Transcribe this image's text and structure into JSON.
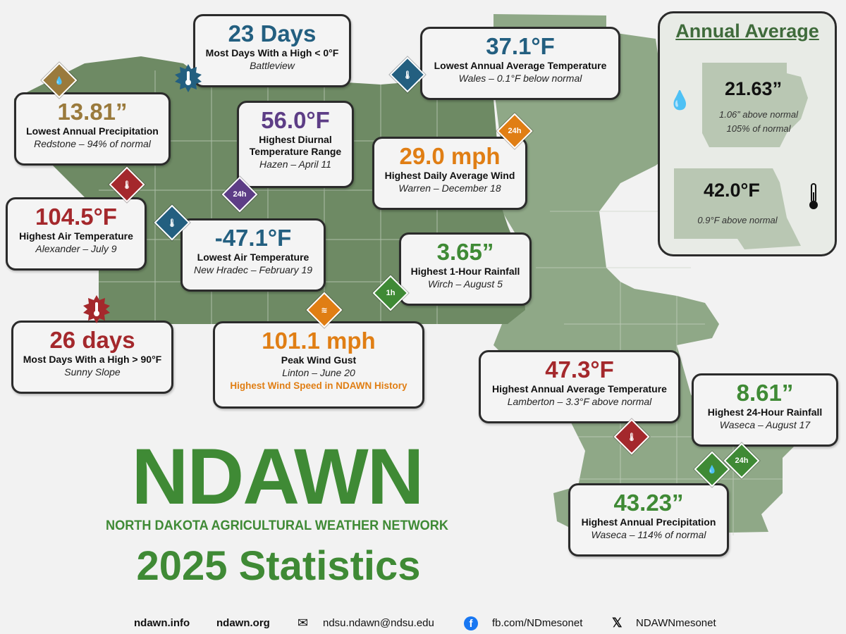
{
  "cards": {
    "days_below_zero": {
      "value": "23 Days",
      "label": "Most Days With a High < 0°F",
      "station": "Battleview"
    },
    "lowest_annual_avg": {
      "value": "37.1°F",
      "label": "Lowest Annual Average Temperature",
      "station": "Wales – 0.1°F below normal"
    },
    "lowest_precip": {
      "value": "13.81”",
      "label": "Lowest Annual Precipitation",
      "station": "Redstone – 94% of normal"
    },
    "diurnal_range": {
      "value": "56.0°F",
      "label_line1": "Highest Diurnal",
      "label_line2": "Temperature Range",
      "station": "Hazen – April 11"
    },
    "daily_wind": {
      "value": "29.0 mph",
      "label": "Highest Daily Average Wind",
      "station": "Warren – December 18"
    },
    "highest_air": {
      "value": "104.5°F",
      "label": "Highest Air Temperature",
      "station": "Alexander – July 9"
    },
    "lowest_air": {
      "value": "-47.1°F",
      "label": "Lowest Air Temperature",
      "station": "New Hradec – February 19"
    },
    "hour_rain": {
      "value": "3.65”",
      "label": "Highest 1-Hour Rainfall",
      "station": "Wirch – August 5"
    },
    "days_above_90": {
      "value": "26 days",
      "label": "Most Days With a High > 90°F",
      "station": "Sunny Slope"
    },
    "peak_gust": {
      "value": "101.1 mph",
      "label": "Peak Wind Gust",
      "station": "Linton – June 20",
      "note": "Highest Wind Speed in NDAWN History"
    },
    "highest_annual_avg": {
      "value": "47.3°F",
      "label": "Highest Annual Average Temperature",
      "station": "Lamberton – 3.3°F above normal"
    },
    "rain_24h": {
      "value": "8.61”",
      "label": "Highest 24-Hour Rainfall",
      "station": "Waseca – August 17"
    },
    "highest_precip": {
      "value": "43.23”",
      "label": "Highest Annual Precipitation",
      "station": "Waseca – 114% of normal"
    }
  },
  "badges": {
    "h24": "24h",
    "h1": "1h"
  },
  "annual": {
    "title": "Annual Average",
    "precip_value": "21.63”",
    "precip_line1": "1.06” above normal",
    "precip_line2": "105% of normal",
    "temp_value": "42.0°F",
    "temp_line1": "0.9°F above normal"
  },
  "logo": {
    "word": "NDAWN",
    "subtitle": "NORTH DAKOTA AGRICULTURAL WEATHER NETWORK",
    "stats": "2025 Statistics"
  },
  "footer": {
    "site1": "ndawn.info",
    "site2": "ndawn.org",
    "email": "ndsu.ndawn@ndsu.edu",
    "facebook": "fb.com/NDmesonet",
    "x": "NDAWNmesonet"
  },
  "colors": {
    "map_fill": "#8fa887",
    "map_dark": "#6e8a64",
    "brand_green": "#3f8a35"
  }
}
